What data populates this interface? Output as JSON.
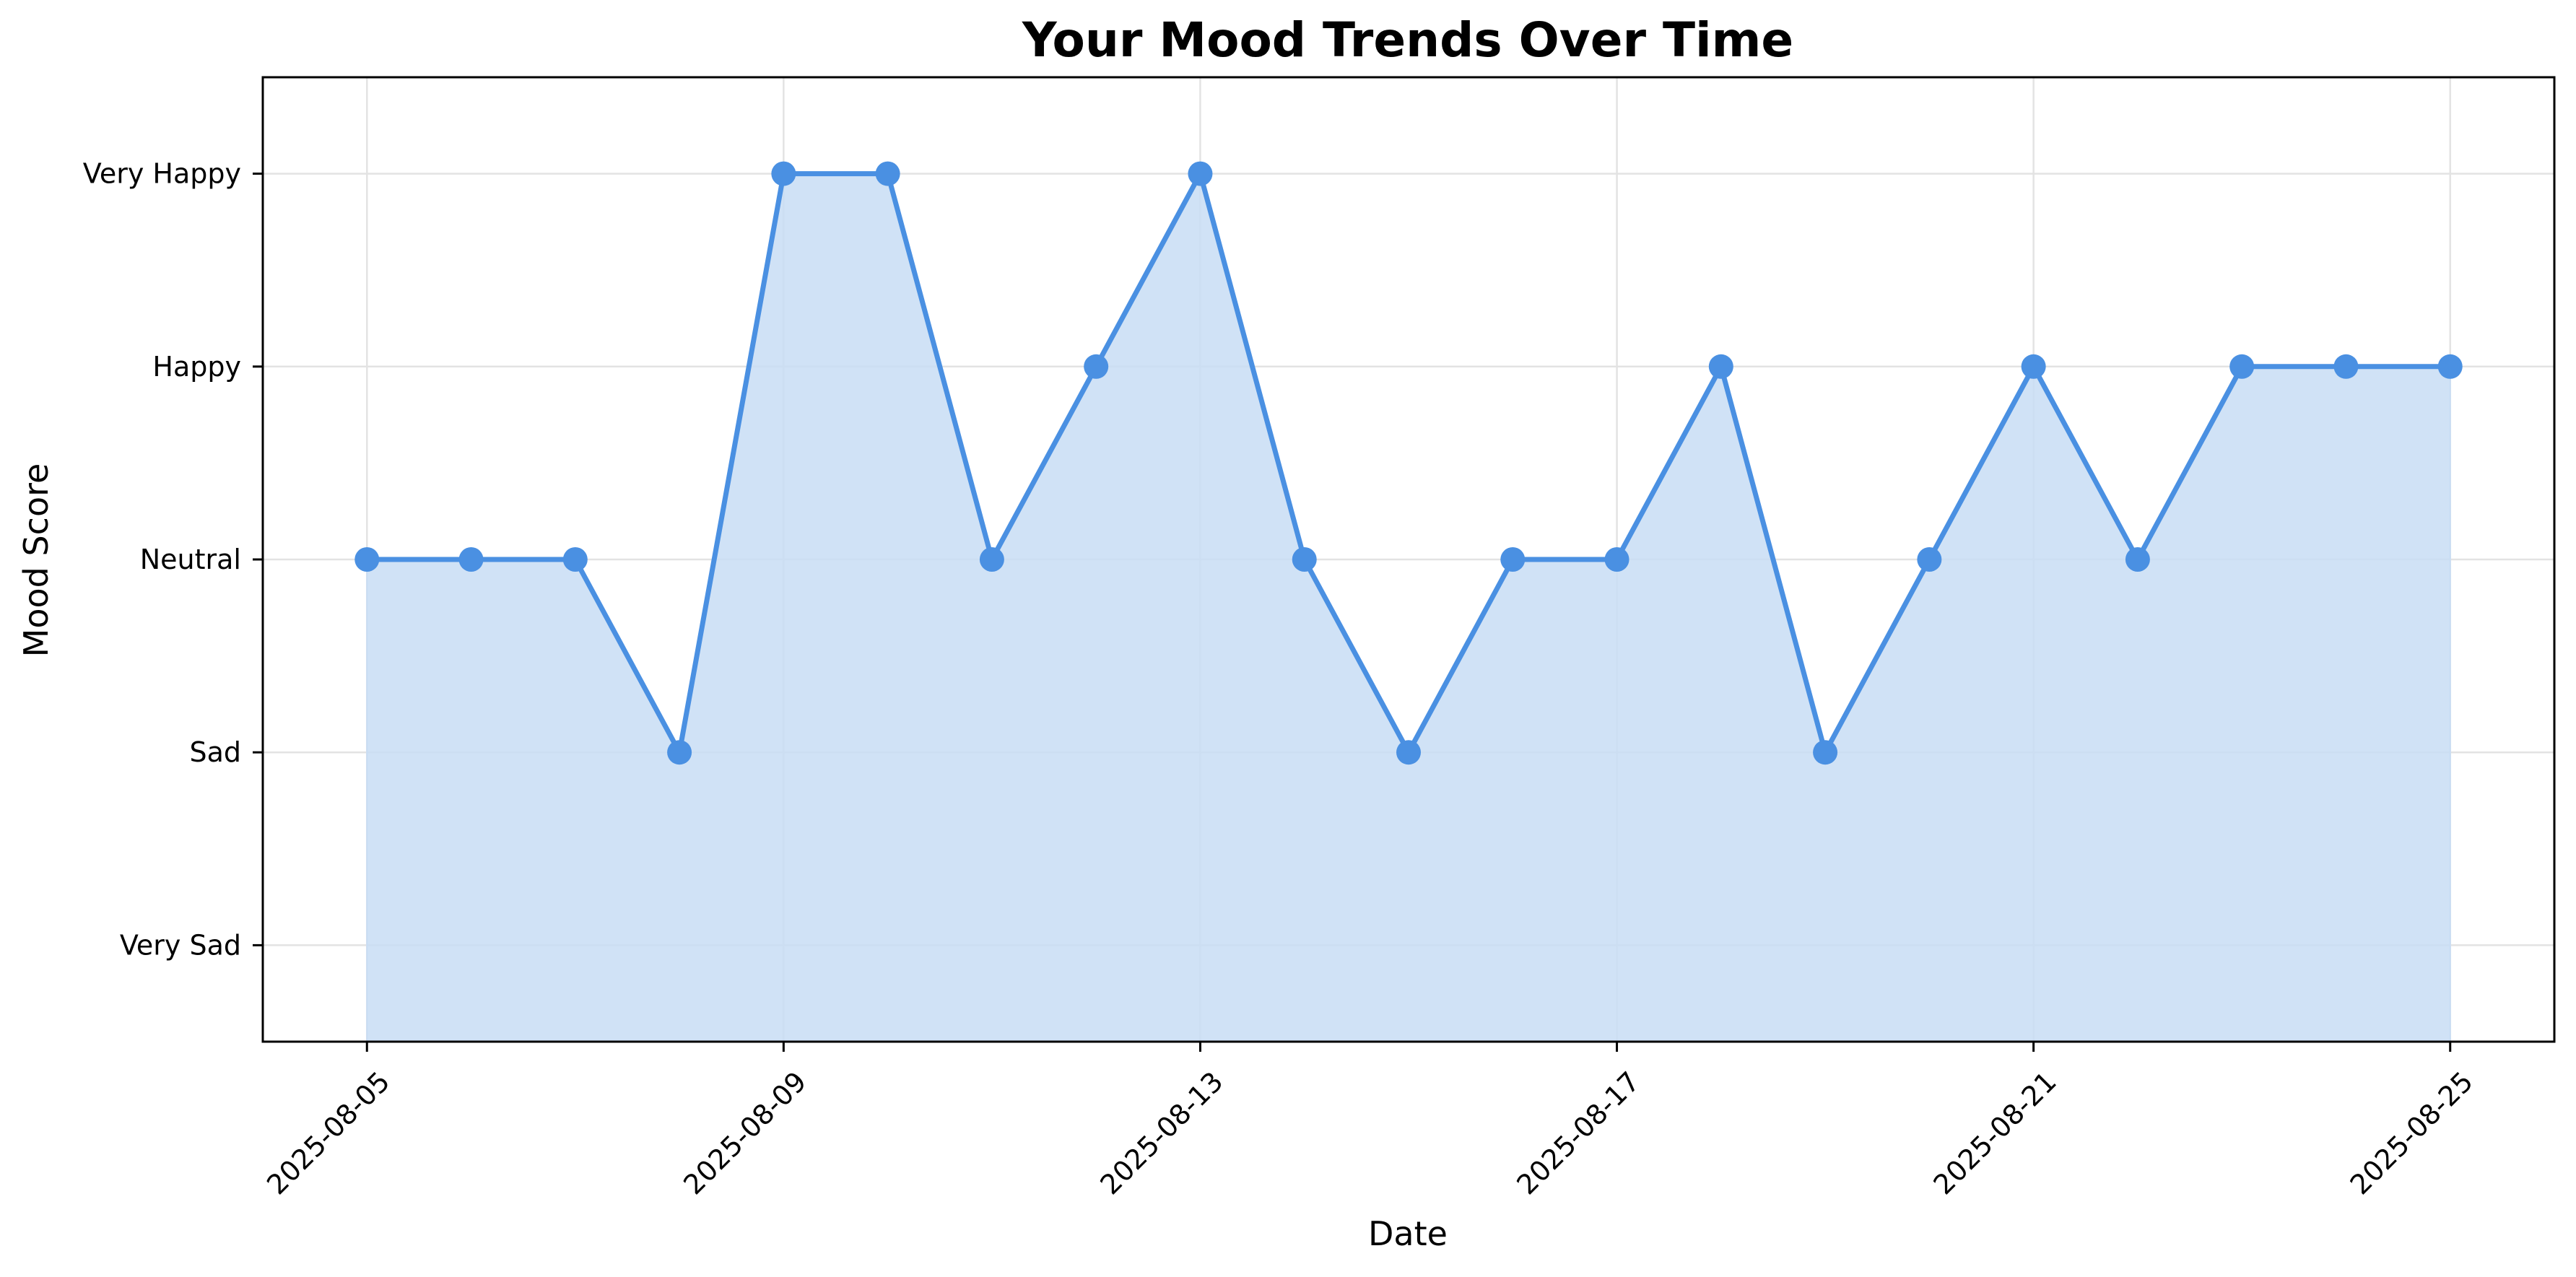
{
  "chart_data": {
    "type": "area",
    "title": "Your Mood Trends Over Time",
    "xlabel": "Date",
    "ylabel": "Mood Score",
    "x": [
      "2025-08-05",
      "2025-08-06",
      "2025-08-07",
      "2025-08-08",
      "2025-08-09",
      "2025-08-10",
      "2025-08-11",
      "2025-08-12",
      "2025-08-13",
      "2025-08-14",
      "2025-08-15",
      "2025-08-16",
      "2025-08-17",
      "2025-08-18",
      "2025-08-19",
      "2025-08-20",
      "2025-08-21",
      "2025-08-22",
      "2025-08-23",
      "2025-08-24",
      "2025-08-25"
    ],
    "series": [
      {
        "values": [
          3,
          3,
          3,
          2,
          5,
          5,
          3,
          4,
          5,
          3,
          2,
          3,
          3,
          4,
          2,
          3,
          4,
          3,
          4,
          4,
          4
        ]
      }
    ],
    "x_ticks": [
      "2025-08-05",
      "2025-08-09",
      "2025-08-13",
      "2025-08-17",
      "2025-08-21",
      "2025-08-25"
    ],
    "y_ticks": [
      {
        "value": 1,
        "label": "Very Sad"
      },
      {
        "value": 2,
        "label": "Sad"
      },
      {
        "value": 3,
        "label": "Neutral"
      },
      {
        "value": 4,
        "label": "Happy"
      },
      {
        "value": 5,
        "label": "Very Happy"
      }
    ],
    "ylim": [
      0.5,
      5.5
    ],
    "xlim": [
      "2025-08-04",
      "2025-08-26"
    ],
    "grid": true,
    "line_color": "#4a90e2",
    "fill_color": "#c8ddf5"
  }
}
